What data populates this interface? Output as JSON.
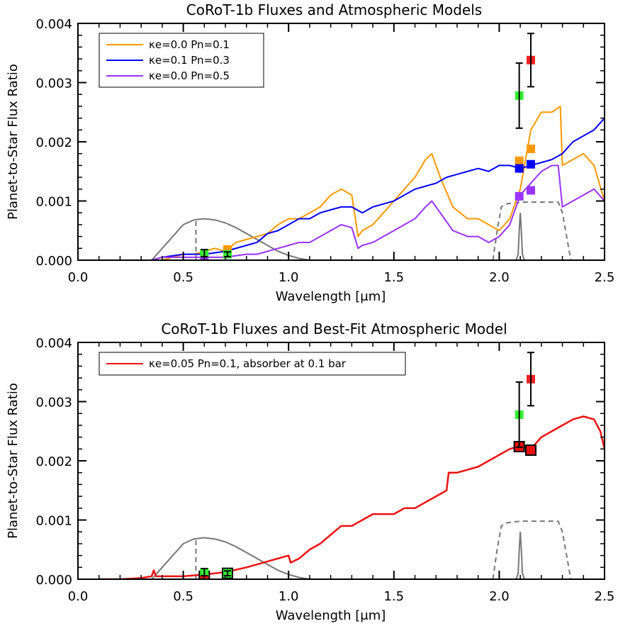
{
  "chart_data": [
    {
      "type": "line",
      "title": "CoRoT-1b Fluxes and Atmospheric Models",
      "xlabel": "Wavelength [μm]",
      "ylabel": "Planet-to-Star Flux Ratio",
      "xlim": [
        0.0,
        2.5
      ],
      "ylim": [
        0.0,
        0.004
      ],
      "x_ticks": [
        "0.0",
        "0.5",
        "1.0",
        "1.5",
        "2.0",
        "2.5"
      ],
      "y_ticks": [
        "0.000",
        "0.001",
        "0.002",
        "0.003",
        "0.004"
      ],
      "legend_position": "top-left",
      "series": [
        {
          "name": "κe=0.0 Pn=0.1",
          "color": "#ff9900",
          "x": [
            0.35,
            0.4,
            0.45,
            0.5,
            0.55,
            0.6,
            0.65,
            0.7,
            0.75,
            0.8,
            0.85,
            0.9,
            0.95,
            1.0,
            1.05,
            1.1,
            1.15,
            1.2,
            1.25,
            1.3,
            1.33,
            1.35,
            1.4,
            1.45,
            1.5,
            1.55,
            1.6,
            1.65,
            1.68,
            1.72,
            1.78,
            1.85,
            1.9,
            1.95,
            2.0,
            2.05,
            2.1,
            2.15,
            2.2,
            2.25,
            2.29,
            2.3,
            2.35,
            2.4,
            2.45,
            2.5
          ],
          "y": [
            0.0,
            0.0,
            5e-05,
            0.0001,
            0.0001,
            0.00015,
            0.0002,
            0.00015,
            0.0003,
            0.00035,
            0.0004,
            0.00045,
            0.0006,
            0.0007,
            0.0007,
            0.0008,
            0.0009,
            0.0011,
            0.0012,
            0.0011,
            0.0004,
            0.0005,
            0.0006,
            0.0008,
            0.001,
            0.0012,
            0.0014,
            0.0017,
            0.0018,
            0.0014,
            0.0009,
            0.0007,
            0.0007,
            0.0006,
            0.0005,
            0.0007,
            0.0012,
            0.0022,
            0.0025,
            0.0025,
            0.0026,
            0.0016,
            0.0017,
            0.0018,
            0.0016,
            0.001
          ]
        },
        {
          "name": "κe=0.1 Pn=0.3",
          "color": "#0000ff",
          "x": [
            0.35,
            0.4,
            0.5,
            0.6,
            0.7,
            0.8,
            0.85,
            0.9,
            0.95,
            1.0,
            1.05,
            1.1,
            1.15,
            1.2,
            1.25,
            1.3,
            1.35,
            1.4,
            1.45,
            1.5,
            1.55,
            1.6,
            1.65,
            1.7,
            1.75,
            1.8,
            1.85,
            1.9,
            1.95,
            2.0,
            2.05,
            2.1,
            2.15,
            2.2,
            2.25,
            2.3,
            2.35,
            2.4,
            2.45,
            2.5
          ],
          "y": [
            0.0,
            5e-05,
            0.0001,
            0.0001,
            0.00015,
            0.00025,
            0.0003,
            0.00045,
            0.0005,
            0.0006,
            0.0007,
            0.0007,
            0.0008,
            0.00085,
            0.0009,
            0.0009,
            0.0008,
            0.0009,
            0.00095,
            0.001,
            0.0011,
            0.0012,
            0.00125,
            0.0013,
            0.0014,
            0.00145,
            0.0015,
            0.00155,
            0.0015,
            0.0016,
            0.0016,
            0.00155,
            0.0016,
            0.00165,
            0.0017,
            0.0018,
            0.002,
            0.0021,
            0.0022,
            0.0024
          ]
        },
        {
          "name": "κe=0.0 Pn=0.5",
          "color": "#9933ff",
          "x": [
            0.35,
            0.4,
            0.5,
            0.6,
            0.7,
            0.8,
            0.85,
            0.9,
            0.95,
            1.0,
            1.05,
            1.1,
            1.15,
            1.2,
            1.25,
            1.3,
            1.33,
            1.35,
            1.4,
            1.45,
            1.5,
            1.55,
            1.6,
            1.65,
            1.68,
            1.72,
            1.78,
            1.85,
            1.9,
            1.95,
            2.0,
            2.05,
            2.1,
            2.15,
            2.2,
            2.25,
            2.28,
            2.3,
            2.35,
            2.4,
            2.45,
            2.5
          ],
          "y": [
            0.0,
            5e-05,
            5e-05,
            5e-05,
            5e-05,
            0.0001,
            0.0001,
            0.00015,
            0.0002,
            0.00025,
            0.0003,
            0.0003,
            0.0004,
            0.0005,
            0.0006,
            0.00055,
            0.0002,
            0.00025,
            0.0003,
            0.0004,
            0.0005,
            0.0006,
            0.0007,
            0.0009,
            0.001,
            0.0008,
            0.0005,
            0.0004,
            0.0004,
            0.0003,
            0.0004,
            0.0006,
            0.0011,
            0.0013,
            0.0015,
            0.0016,
            0.0016,
            0.0009,
            0.001,
            0.0011,
            0.0012,
            0.001
          ]
        }
      ],
      "bandpass_curves": [
        {
          "name": "optical",
          "color": "#777777",
          "x": [
            0.35,
            0.4,
            0.45,
            0.5,
            0.55,
            0.6,
            0.65,
            0.7,
            0.75,
            0.8,
            0.85,
            0.9,
            0.95,
            1.0,
            1.05,
            1.1
          ],
          "y": [
            0.0,
            0.0002,
            0.0004,
            0.0006,
            0.00068,
            0.0007,
            0.00068,
            0.00063,
            0.00055,
            0.00045,
            0.00035,
            0.00025,
            0.00015,
            8e-05,
            3e-05,
            0.0
          ]
        },
        {
          "name": "narrow",
          "color": "#777777",
          "x": [
            2.08,
            2.09,
            2.095,
            2.1,
            2.105,
            2.11,
            2.12
          ],
          "y": [
            0.0,
            0.0001,
            0.0005,
            0.0008,
            0.0005,
            0.0001,
            0.0
          ]
        },
        {
          "name": "broad",
          "color": "#777777",
          "dashed": true,
          "x": [
            1.97,
            1.99,
            2.01,
            2.03,
            2.1,
            2.2,
            2.28,
            2.3,
            2.32,
            2.34
          ],
          "y": [
            0.0,
            0.0005,
            0.0009,
            0.00095,
            0.00098,
            0.00098,
            0.00098,
            0.0008,
            0.0004,
            0.0
          ]
        },
        {
          "name": "dashed-marker",
          "color": "#777777",
          "dashed": true,
          "x": [
            0.56,
            0.56
          ],
          "y": [
            0.0,
            0.0007
          ]
        }
      ],
      "observations": [
        {
          "x": 0.6,
          "y": 0.00012,
          "err": 6e-05,
          "color": "#33ee33"
        },
        {
          "x": 0.71,
          "y": 0.0001,
          "err": 4e-05,
          "color": "#33ee33"
        },
        {
          "x": 2.095,
          "y": 0.00278,
          "err": 0.00055,
          "color": "#33ee33"
        },
        {
          "x": 2.15,
          "y": 0.00338,
          "err": 0.00045,
          "color": "#ee2222"
        }
      ],
      "model_points": [
        {
          "x": 0.6,
          "y": 5e-05,
          "color": "#9933ff"
        },
        {
          "x": 0.71,
          "y": 0.00018,
          "color": "#ff9900"
        },
        {
          "x": 0.71,
          "y": 0.0001,
          "color": "#9933ff"
        },
        {
          "x": 2.095,
          "y": 0.00168,
          "color": "#ff9900"
        },
        {
          "x": 2.15,
          "y": 0.00188,
          "color": "#ff9900"
        },
        {
          "x": 2.095,
          "y": 0.00155,
          "color": "#0000ff"
        },
        {
          "x": 2.15,
          "y": 0.00162,
          "color": "#0000ff"
        },
        {
          "x": 2.095,
          "y": 0.00108,
          "color": "#9933ff"
        },
        {
          "x": 2.15,
          "y": 0.00118,
          "color": "#9933ff"
        }
      ]
    },
    {
      "type": "line",
      "title": "CoRoT-1b Fluxes and Best-Fit Atmospheric Model",
      "xlabel": "Wavelength [μm]",
      "ylabel": "Planet-to-Star Flux Ratio",
      "xlim": [
        0.0,
        2.5
      ],
      "ylim": [
        0.0,
        0.004
      ],
      "x_ticks": [
        "0.0",
        "0.5",
        "1.0",
        "1.5",
        "2.0",
        "2.5"
      ],
      "y_ticks": [
        "0.000",
        "0.001",
        "0.002",
        "0.003",
        "0.004"
      ],
      "legend_position": "top-left",
      "series": [
        {
          "name": "κe=0.05 Pn=0.1, absorber at 0.1 bar",
          "color": "#ee1111",
          "x": [
            0.1,
            0.2,
            0.3,
            0.35,
            0.36,
            0.37,
            0.4,
            0.5,
            0.6,
            0.7,
            0.8,
            0.9,
            1.0,
            1.01,
            1.05,
            1.1,
            1.15,
            1.2,
            1.25,
            1.3,
            1.35,
            1.4,
            1.45,
            1.5,
            1.55,
            1.6,
            1.65,
            1.7,
            1.75,
            1.76,
            1.8,
            1.85,
            1.9,
            1.95,
            2.0,
            2.05,
            2.1,
            2.15,
            2.2,
            2.25,
            2.3,
            2.35,
            2.4,
            2.45,
            2.48,
            2.5
          ],
          "y": [
            0.0,
            0.0,
            2e-05,
            5e-05,
            0.00015,
            5e-05,
            5e-05,
            5e-05,
            8e-05,
            0.00012,
            0.0002,
            0.0003,
            0.0004,
            0.00028,
            0.00035,
            0.0005,
            0.0006,
            0.00075,
            0.0009,
            0.0009,
            0.001,
            0.0011,
            0.0011,
            0.0011,
            0.0012,
            0.0012,
            0.0013,
            0.0014,
            0.0015,
            0.0018,
            0.0018,
            0.00185,
            0.0019,
            0.002,
            0.0021,
            0.0022,
            0.00225,
            0.0022,
            0.0024,
            0.0025,
            0.0026,
            0.0027,
            0.00275,
            0.0027,
            0.0025,
            0.0022
          ]
        }
      ],
      "bandpass_curves": [
        {
          "name": "optical",
          "color": "#777777",
          "x": [
            0.35,
            0.4,
            0.45,
            0.5,
            0.55,
            0.6,
            0.65,
            0.7,
            0.75,
            0.8,
            0.85,
            0.9,
            0.95,
            1.0,
            1.05,
            1.1
          ],
          "y": [
            0.0,
            0.0002,
            0.0004,
            0.0006,
            0.00068,
            0.0007,
            0.00068,
            0.00063,
            0.00055,
            0.00045,
            0.00035,
            0.00025,
            0.00015,
            8e-05,
            3e-05,
            0.0
          ]
        },
        {
          "name": "narrow",
          "color": "#777777",
          "x": [
            2.08,
            2.09,
            2.095,
            2.1,
            2.105,
            2.11,
            2.12
          ],
          "y": [
            0.0,
            0.0001,
            0.0005,
            0.0008,
            0.0005,
            0.0001,
            0.0
          ]
        },
        {
          "name": "broad",
          "color": "#777777",
          "dashed": true,
          "x": [
            1.97,
            1.99,
            2.01,
            2.03,
            2.1,
            2.2,
            2.28,
            2.3,
            2.32,
            2.34
          ],
          "y": [
            0.0,
            0.0005,
            0.0009,
            0.00095,
            0.00098,
            0.00098,
            0.00098,
            0.0008,
            0.0004,
            0.0
          ]
        },
        {
          "name": "dashed-marker",
          "color": "#777777",
          "dashed": true,
          "x": [
            0.56,
            0.56
          ],
          "y": [
            0.0,
            0.0007
          ]
        }
      ],
      "observations": [
        {
          "x": 0.6,
          "y": 0.00012,
          "err": 6e-05,
          "color": "#33ee33"
        },
        {
          "x": 0.71,
          "y": 0.0001,
          "err": 4e-05,
          "color": "#33ee33"
        },
        {
          "x": 2.095,
          "y": 0.00278,
          "err": 0.00055,
          "color": "#33ee33"
        },
        {
          "x": 2.15,
          "y": 0.00338,
          "err": 0.00045,
          "color": "#ee2222"
        }
      ],
      "model_points": [
        {
          "x": 0.6,
          "y": 5e-05,
          "color": "#ee1111",
          "outlined": true
        },
        {
          "x": 0.71,
          "y": 0.0001,
          "color": "#33ee33",
          "outlined": true
        },
        {
          "x": 2.095,
          "y": 0.00224,
          "color": "#ee1111",
          "outlined": true
        },
        {
          "x": 2.15,
          "y": 0.00218,
          "color": "#ee1111",
          "outlined": true
        }
      ]
    }
  ]
}
